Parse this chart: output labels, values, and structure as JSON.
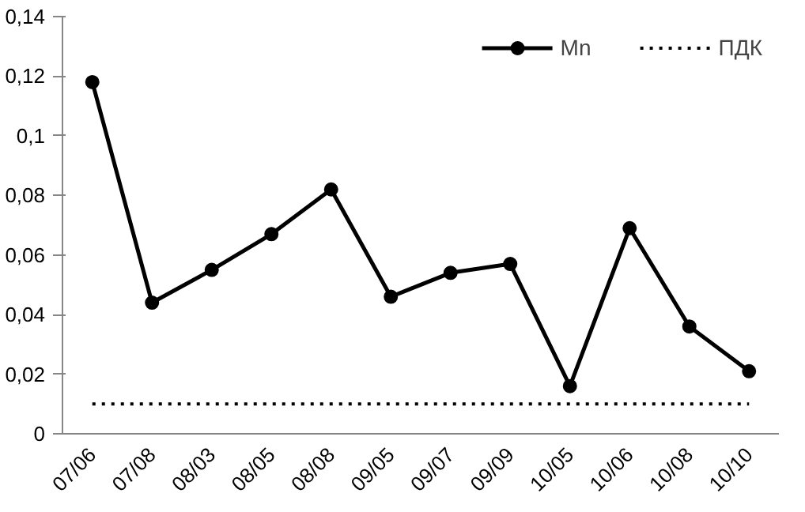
{
  "chart_data": {
    "type": "line",
    "categories": [
      "07/06",
      "07/08",
      "08/03",
      "08/05",
      "08/08",
      "09/05",
      "09/07",
      "09/09",
      "10/05",
      "10/06",
      "10/08",
      "10/10"
    ],
    "series": [
      {
        "name": "Mn",
        "color": "#000000",
        "marker": "circle",
        "line_style": "solid",
        "values": [
          0.118,
          0.044,
          0.055,
          0.067,
          0.082,
          0.046,
          0.054,
          0.057,
          0.016,
          0.069,
          0.036,
          0.021
        ]
      },
      {
        "name": "ПДК",
        "color": "#000000",
        "marker": "none",
        "line_style": "dotted",
        "values": [
          0.01,
          0.01,
          0.01,
          0.01,
          0.01,
          0.01,
          0.01,
          0.01,
          0.01,
          0.01,
          0.01,
          0.01
        ]
      }
    ],
    "ylim": [
      0,
      0.14
    ],
    "yticks": [
      0,
      {
        "value": 0.02,
        "label": "0,02"
      },
      {
        "value": 0.04,
        "label": "0,04"
      },
      {
        "value": 0.06,
        "label": "0,06"
      },
      {
        "value": 0.08,
        "label": "0,08"
      },
      {
        "value": 0.1,
        "label": "0,1"
      },
      {
        "value": 0.12,
        "label": "0,12"
      },
      {
        "value": 0.14,
        "label": "0,14"
      }
    ],
    "grid": false,
    "legend": "top right"
  }
}
